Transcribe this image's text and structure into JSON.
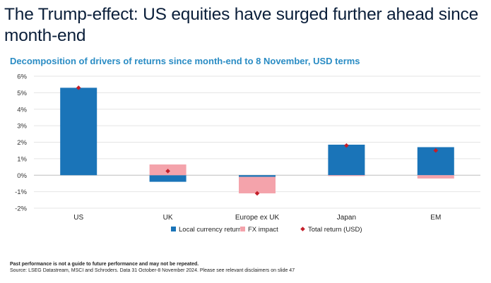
{
  "header": {
    "title": "The Trump-effect: US equities have surged further ahead since month-end",
    "subtitle": "Decomposition of drivers of returns since month-end to 8 November, USD terms"
  },
  "chart_data": {
    "type": "bar",
    "stacked": true,
    "categories": [
      "US",
      "UK",
      "Europe ex UK",
      "Japan",
      "EM"
    ],
    "series": [
      {
        "name": "Local currency return",
        "kind": "bar",
        "color": "#1a74b8",
        "values": [
          5.3,
          -0.4,
          -0.1,
          1.85,
          1.7
        ]
      },
      {
        "name": "FX impact",
        "kind": "bar",
        "color": "#f4a3ab",
        "values": [
          0.0,
          0.65,
          -1.0,
          -0.05,
          -0.2
        ]
      },
      {
        "name": "Total return (USD)",
        "kind": "marker",
        "color": "#c41f2a",
        "values": [
          5.3,
          0.25,
          -1.1,
          1.8,
          1.5
        ]
      }
    ],
    "ylim": [
      -2,
      6
    ],
    "yticks": [
      -2,
      -1,
      0,
      1,
      2,
      3,
      4,
      5,
      6
    ],
    "ytick_labels": [
      "-2%",
      "-1%",
      "0%",
      "1%",
      "2%",
      "3%",
      "4%",
      "5%",
      "6%"
    ],
    "xlabel": "",
    "ylabel": "",
    "grid": true,
    "legend_position": "bottom"
  },
  "footer": {
    "disclaimer": "Past performance is not a guide to future performance and may not be repeated.",
    "source": "Source: LSEG Datastream, MSCI and Schroders. Data 31 October-8 November 2024. Please see relevant disclaimers on slide 47"
  }
}
